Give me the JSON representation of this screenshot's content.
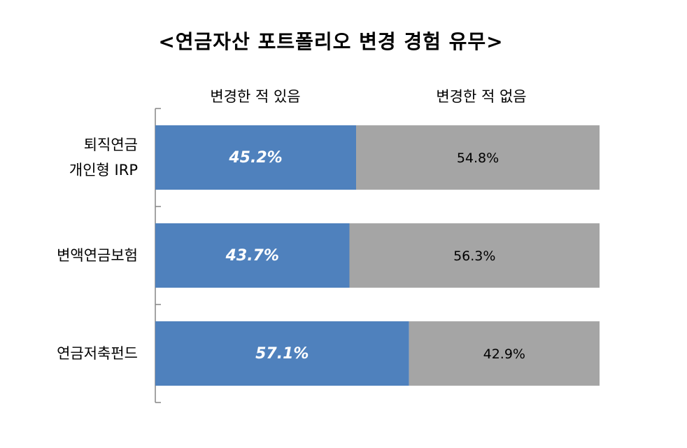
{
  "title": "<연금자산 포트폴리오 변경 경험 유무>",
  "legend": {
    "yes": "변경한 적 있음",
    "no": "변경한 적 없음"
  },
  "colors": {
    "yes": "#4f81bd",
    "no": "#a5a5a5"
  },
  "chart_data": {
    "type": "bar",
    "orientation": "horizontal-stacked-100",
    "title": "<연금자산 포트폴리오 변경 경험 유무>",
    "categories": [
      [
        "퇴직연금",
        "개인형 IRP"
      ],
      [
        "변액연금보험"
      ],
      [
        "연금저축펀드"
      ]
    ],
    "series": [
      {
        "name": "변경한 적 있음",
        "values": [
          45.2,
          43.7,
          57.1
        ],
        "labels": [
          "45.2%",
          "43.7%",
          "57.1%"
        ]
      },
      {
        "name": "변경한 적 없음",
        "values": [
          54.8,
          56.3,
          42.9
        ],
        "labels": [
          "54.8%",
          "56.3%",
          "42.9%"
        ]
      }
    ],
    "xlim": [
      0,
      100
    ],
    "legend_position": "top",
    "grid": false
  }
}
